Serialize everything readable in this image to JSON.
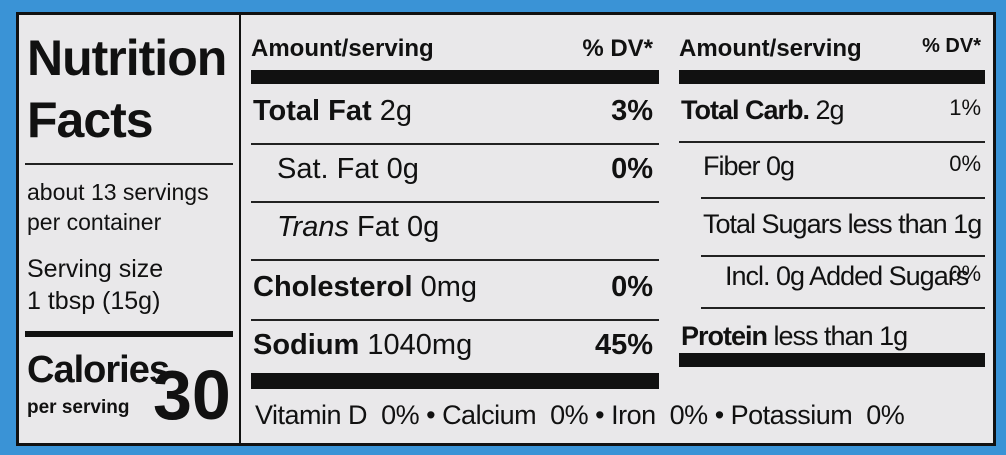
{
  "label": {
    "title": "Nutrition Facts",
    "servings": "about 13 servings per container",
    "serving_size_label": "Serving size",
    "serving_size": "1 tbsp (15g)",
    "calories_label": "Calories",
    "per_serving": "per serving",
    "calories": "30",
    "left_header": {
      "amount": "Amount/serving",
      "dv": "% DV*"
    },
    "right_header": {
      "amount": "Amount/serving",
      "dv": "% DV*"
    },
    "left_rows": [
      {
        "name": "Total Fat",
        "amount": "2g",
        "dv": "3%",
        "bold": true,
        "indent": false
      },
      {
        "name": "Sat. Fat",
        "amount": "0g",
        "dv": "0%",
        "bold": false,
        "indent": true
      },
      {
        "italic": "Trans",
        "name": "Fat",
        "amount": "0g",
        "bold": false,
        "indent": true
      },
      {
        "name": "Cholesterol",
        "amount": "0mg",
        "dv": "0%",
        "bold": true,
        "indent": false
      },
      {
        "name": "Sodium",
        "amount": "1040mg",
        "dv": "45%",
        "bold": true,
        "indent": false
      }
    ],
    "right_rows": [
      {
        "name": "Total Carb.",
        "amount": "2g",
        "dv": "1%",
        "bold": true,
        "indent": 0
      },
      {
        "name": "Fiber",
        "amount": "0g",
        "dv": "0%",
        "bold": false,
        "indent": 1
      },
      {
        "name": "Total Sugars",
        "amount": "less than 1g",
        "bold": false,
        "indent": 1
      },
      {
        "name": "Incl. 0g",
        "amount": "Added Sugars",
        "dv": "0%",
        "bold": false,
        "indent": 2
      },
      {
        "name": "Protein",
        "amount": "less than 1g",
        "bold": true,
        "indent": 0
      }
    ],
    "vitamins": [
      {
        "name": "Vitamin D",
        "dv": "0%"
      },
      {
        "name": "Calcium",
        "dv": "0%"
      },
      {
        "name": "Iron",
        "dv": "0%"
      },
      {
        "name": "Potassium",
        "dv": "0%"
      }
    ]
  }
}
